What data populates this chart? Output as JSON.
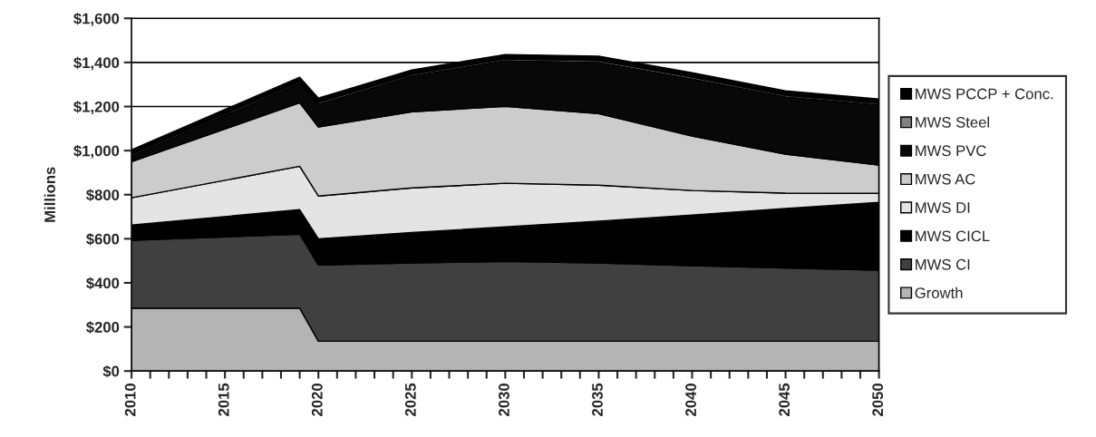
{
  "chart_data": {
    "type": "area",
    "stacked": true,
    "ylabel": "Millions",
    "x": [
      2010,
      2019,
      2020,
      2025,
      2030,
      2035,
      2040,
      2045,
      2050
    ],
    "series": [
      {
        "name": "Growth",
        "color": "#b4b4b4",
        "values": [
          285,
          285,
          135,
          135,
          135,
          135,
          135,
          135,
          135
        ]
      },
      {
        "name": "MWS CI",
        "color": "#404040",
        "values": [
          308,
          336,
          346,
          355,
          362,
          355,
          343,
          333,
          322
        ]
      },
      {
        "name": "MWS CICL",
        "color": "#000000",
        "values": [
          69,
          111,
          119,
          138,
          157,
          190,
          230,
          269,
          308
        ]
      },
      {
        "name": "MWS DI",
        "color": "#e4e4e4",
        "values": [
          124,
          197,
          194,
          203,
          198,
          163,
          111,
          70,
          41
        ]
      },
      {
        "name": "MWS AC",
        "color": "#cccccc",
        "values": [
          164,
          288,
          313,
          345,
          349,
          325,
          247,
          177,
          128
        ]
      },
      {
        "name": "MWS PVC",
        "color": "#080808",
        "values": [
          26,
          88,
          103,
          162,
          207,
          232,
          259,
          259,
          272
        ]
      },
      {
        "name": "MWS Steel",
        "color": "#808080",
        "values": [
          8,
          8,
          8,
          8,
          8,
          8,
          8,
          8,
          8
        ]
      },
      {
        "name": "MWS PCCP + Conc.",
        "color": "#000000",
        "values": [
          20,
          20,
          20,
          20,
          20,
          20,
          20,
          20,
          20
        ]
      }
    ],
    "xlim": [
      2010,
      2050
    ],
    "xticks": [
      2010,
      {
        "value": 2011,
        "label": null
      },
      {
        "value": 2012,
        "label": null
      },
      {
        "value": 2013,
        "label": null
      },
      {
        "value": 2014,
        "label": null
      },
      2015,
      {
        "value": 2016,
        "label": null
      },
      {
        "value": 2017,
        "label": null
      },
      {
        "value": 2018,
        "label": null
      },
      {
        "value": 2019,
        "label": null
      },
      2020,
      {
        "value": 2021,
        "label": null
      },
      {
        "value": 2022,
        "label": null
      },
      {
        "value": 2023,
        "label": null
      },
      {
        "value": 2024,
        "label": null
      },
      2025,
      {
        "value": 2026,
        "label": null
      },
      {
        "value": 2027,
        "label": null
      },
      {
        "value": 2028,
        "label": null
      },
      {
        "value": 2029,
        "label": null
      },
      2030,
      {
        "value": 2031,
        "label": null
      },
      {
        "value": 2032,
        "label": null
      },
      {
        "value": 2033,
        "label": null
      },
      {
        "value": 2034,
        "label": null
      },
      2035,
      {
        "value": 2036,
        "label": null
      },
      {
        "value": 2037,
        "label": null
      },
      {
        "value": 2038,
        "label": null
      },
      {
        "value": 2039,
        "label": null
      },
      2040,
      {
        "value": 2041,
        "label": null
      },
      {
        "value": 2042,
        "label": null
      },
      {
        "value": 2043,
        "label": null
      },
      {
        "value": 2044,
        "label": null
      },
      2045,
      {
        "value": 2046,
        "label": null
      },
      {
        "value": 2047,
        "label": null
      },
      {
        "value": 2048,
        "label": null
      },
      {
        "value": 2049,
        "label": null
      },
      2050
    ],
    "ylim": [
      0,
      1600
    ],
    "yticks": [
      {
        "value": 0,
        "label": "$0"
      },
      {
        "value": 200,
        "label": "$200"
      },
      {
        "value": 400,
        "label": "$400"
      },
      {
        "value": 600,
        "label": "$600"
      },
      {
        "value": 800,
        "label": "$800"
      },
      {
        "value": 1000,
        "label": "$1,000"
      },
      {
        "value": 1200,
        "label": "$1,200"
      },
      {
        "value": 1400,
        "label": "$1,400"
      },
      {
        "value": 1600,
        "label": "$1,600"
      }
    ],
    "grid": "y",
    "legend": "right"
  }
}
